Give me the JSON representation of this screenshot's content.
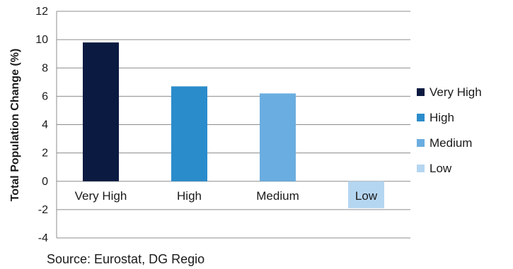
{
  "chart_data": {
    "type": "bar",
    "categories": [
      "Very High",
      "High",
      "Medium",
      "Low"
    ],
    "values": [
      9.8,
      6.7,
      6.2,
      -1.9
    ],
    "colors": [
      "#0b1a40",
      "#2b8ccb",
      "#6aade0",
      "#b5d6f1"
    ],
    "title": "",
    "xlabel": "",
    "ylabel": "Total Population Change (%)",
    "ylim": [
      -4,
      12
    ],
    "yticks": [
      -4,
      -2,
      0,
      2,
      4,
      6,
      8,
      10,
      12
    ],
    "grid": true,
    "legend": {
      "position": "right",
      "entries": [
        "Very High",
        "High",
        "Medium",
        "Low"
      ]
    }
  },
  "source": "Source: Eurostat, DG Regio"
}
